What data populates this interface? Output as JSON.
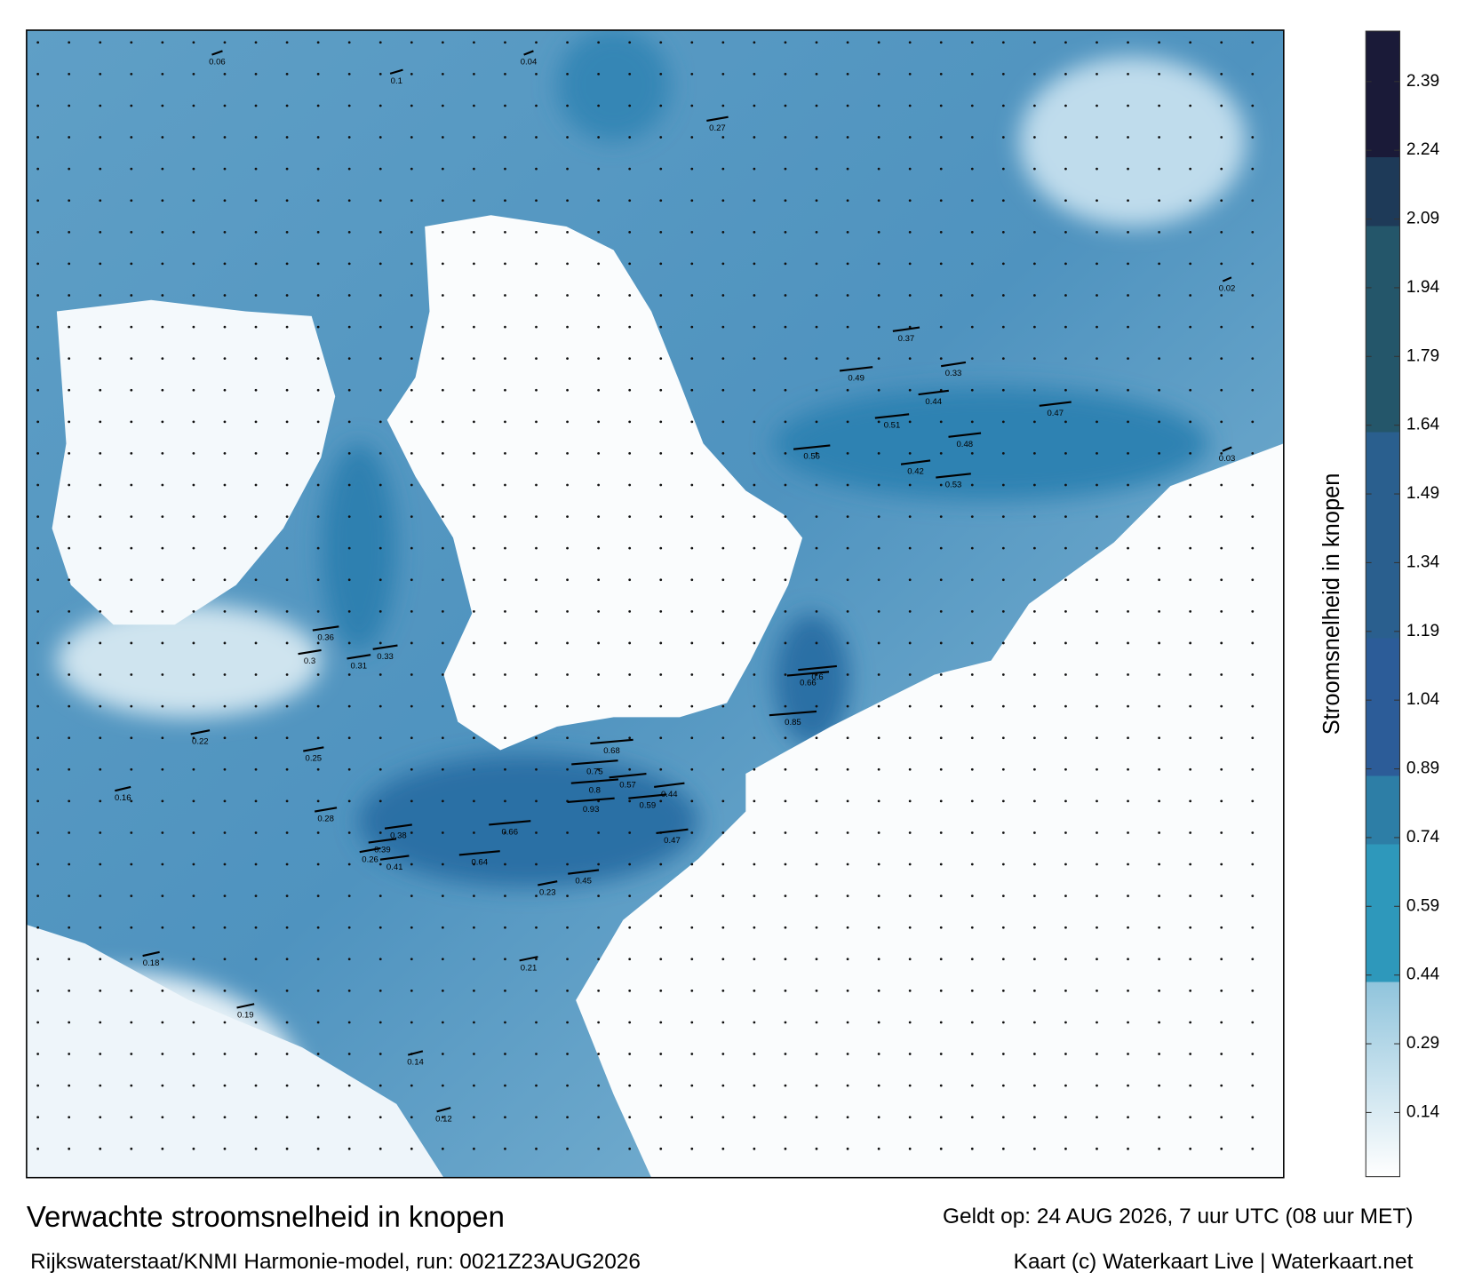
{
  "map": {
    "title": "Verwachte stroomsnelheid in knopen",
    "subtitle": "Rijkswaterstaat/KNMI Harmonie-model, run: 0021Z23AUG2026",
    "valid": "Geldt op: 24 AUG 2026, 7 uur UTC (08 uur MET)",
    "credit": "Kaart (c) Waterkaart Live | Waterkaart.net",
    "colorbar": {
      "label": "Stroomsnelheid in knopen",
      "lim": [
        0,
        2.5
      ],
      "ticks": [
        0.14,
        0.29,
        0.44,
        0.59,
        0.74,
        0.89,
        1.04,
        1.19,
        1.34,
        1.49,
        1.64,
        1.79,
        1.94,
        2.09,
        2.24,
        2.39
      ]
    },
    "labels": [
      0.75,
      0.8,
      0.68,
      0.57,
      0.93,
      0.59,
      0.66,
      0.64,
      0.45,
      0.47,
      0.44,
      0.38,
      0.39,
      0.41,
      0.26,
      0.3,
      0.31,
      0.33,
      0.25,
      0.28,
      0.36,
      0.42,
      0.48,
      0.53,
      0.51,
      0.47,
      0.44,
      0.33,
      0.37,
      0.56,
      0.49,
      0.66,
      0.85,
      0.6,
      0.18,
      0.22,
      0.16,
      0.19,
      0.14,
      0.12,
      0.21,
      0.23,
      0.27,
      0.1,
      0.06,
      0.04,
      0.02,
      0.03
    ]
  }
}
